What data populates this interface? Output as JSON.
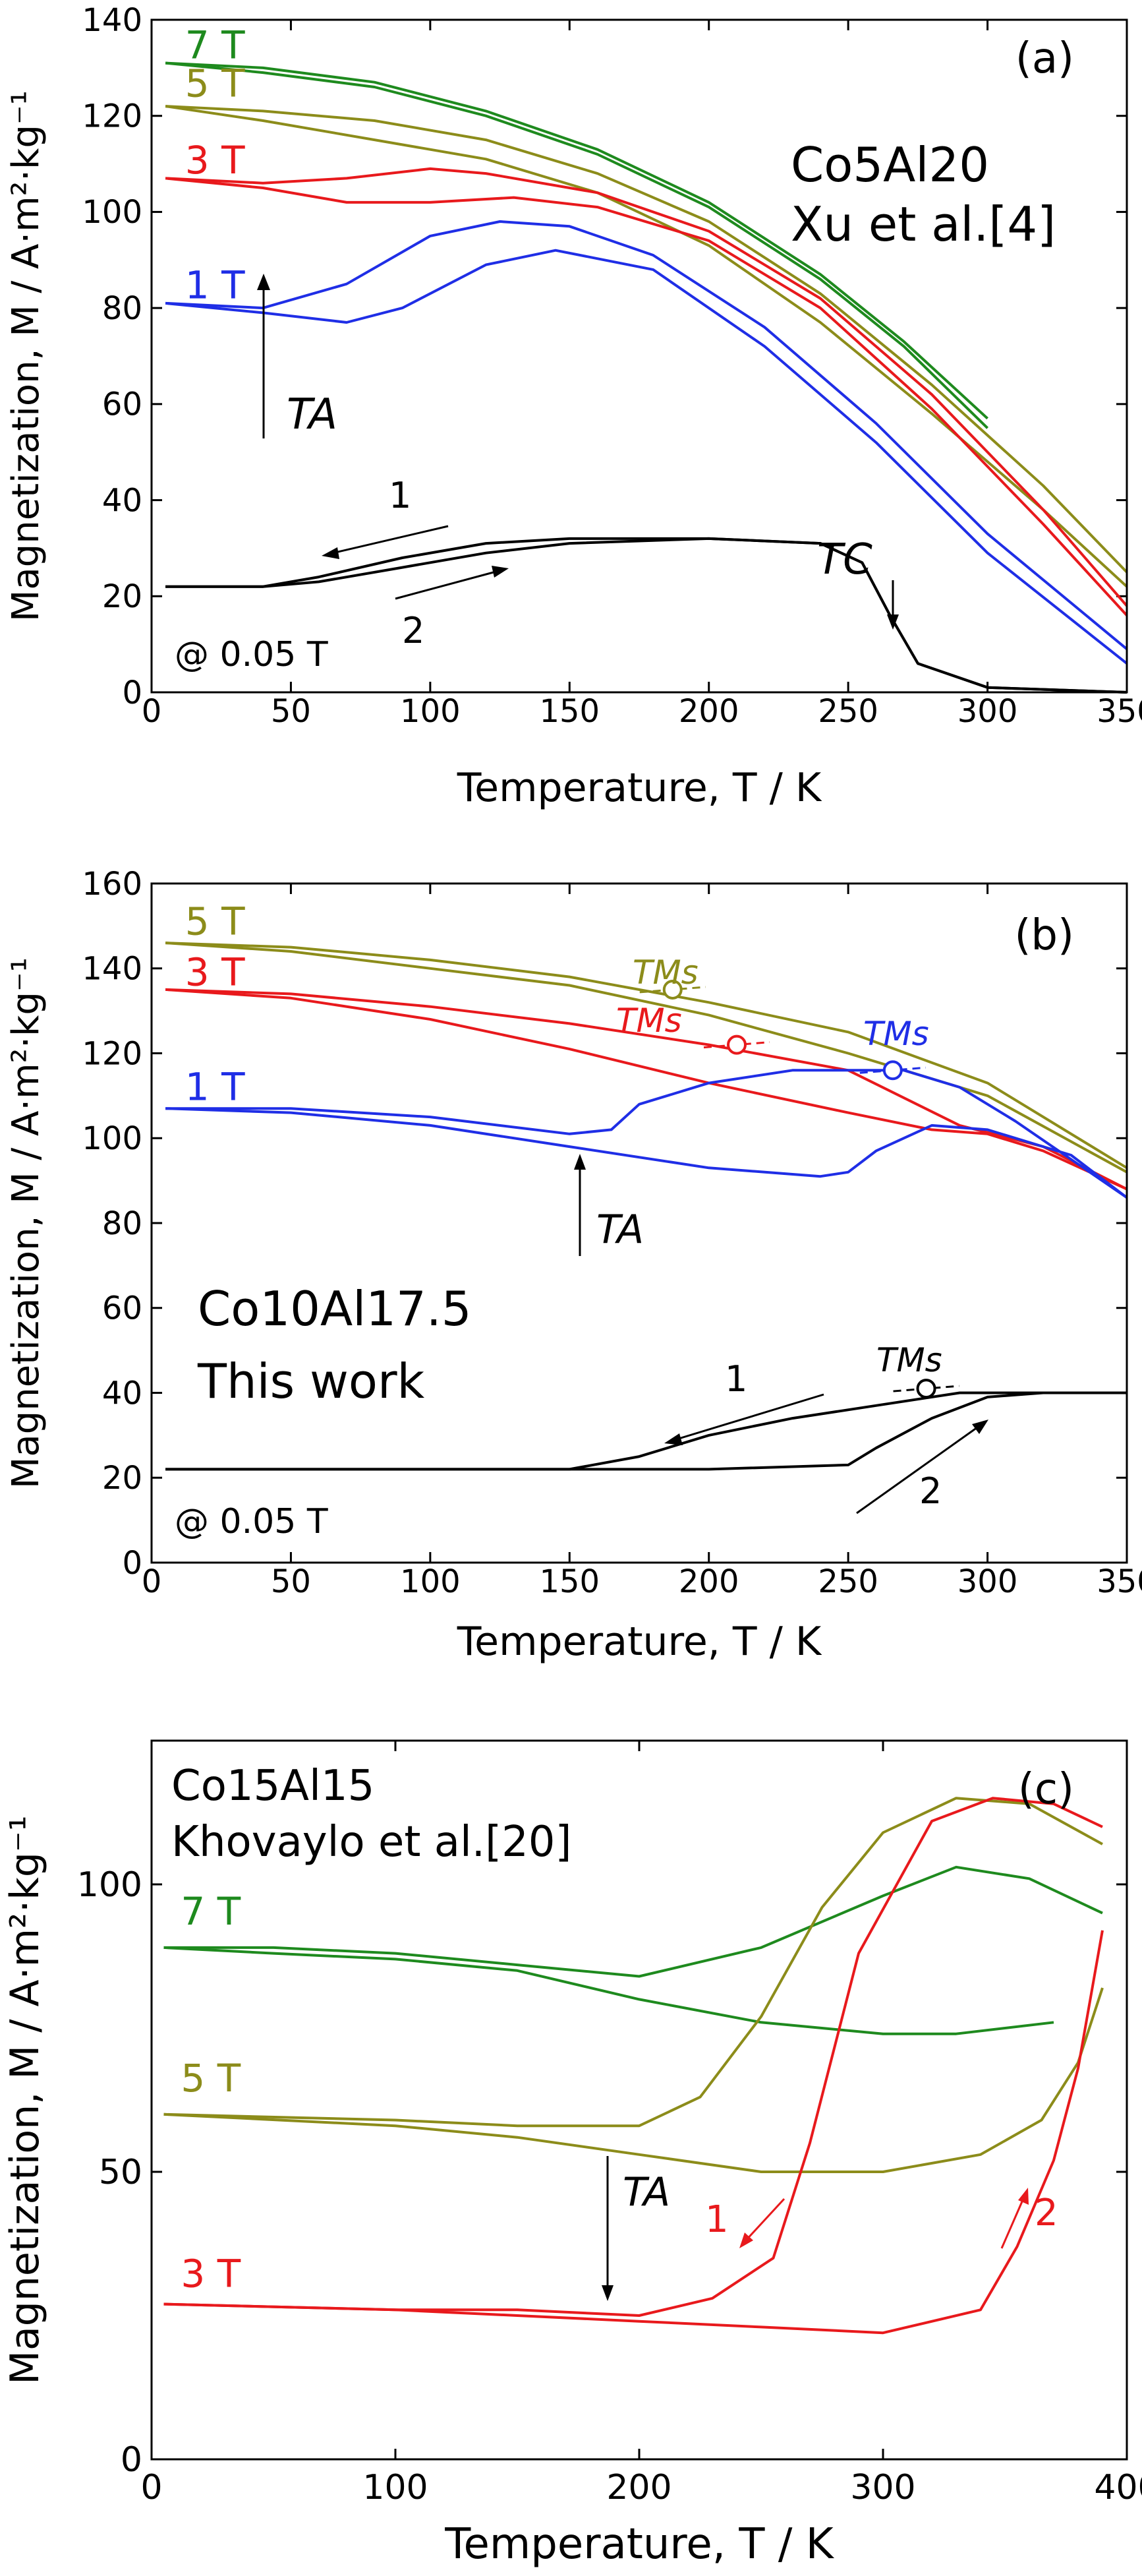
{
  "chart_data": [
    {
      "type": "line",
      "panel_label": "(a)",
      "xlabel": "Temperature, T / K",
      "ylabel": "Magnetization, M / A·m²·kg⁻¹",
      "xlim": [
        0,
        350
      ],
      "ylim": [
        0,
        140
      ],
      "xticks": [
        0,
        50,
        100,
        150,
        200,
        250,
        300,
        350
      ],
      "yticks": [
        0,
        20,
        40,
        60,
        80,
        100,
        120,
        140
      ],
      "annotations": {
        "sample_text": "Co5Al20",
        "ref_text": "Xu et al.[4]",
        "field_note": "@ 0.05 T",
        "ta": "TA",
        "tc": "TC",
        "arrow1": "1",
        "arrow2": "2"
      },
      "series": [
        {
          "name": "7 T",
          "color": "#1e8a1e",
          "label_xy": [
            12,
            132
          ],
          "x": [
            5,
            40,
            80,
            120,
            160,
            200,
            240,
            270,
            300
          ],
          "values": [
            131,
            130,
            127,
            121,
            113,
            102,
            87,
            73,
            57
          ]
        },
        {
          "name": "7 T (2)",
          "color": "#1e8a1e",
          "x": [
            5,
            40,
            80,
            120,
            160,
            200,
            240,
            270,
            300
          ],
          "values": [
            131,
            129,
            126,
            120,
            112,
            101,
            86,
            72,
            55
          ]
        },
        {
          "name": "5 T",
          "color": "#8c8c1a",
          "label_xy": [
            12,
            124
          ],
          "x": [
            5,
            40,
            80,
            120,
            160,
            200,
            240,
            280,
            320,
            350
          ],
          "values": [
            122,
            121,
            119,
            115,
            108,
            98,
            83,
            64,
            43,
            25
          ]
        },
        {
          "name": "5 T (2)",
          "color": "#8c8c1a",
          "x": [
            5,
            40,
            80,
            120,
            160,
            200,
            240,
            280,
            320,
            350
          ],
          "values": [
            122,
            119,
            115,
            111,
            104,
            93,
            77,
            58,
            38,
            22
          ]
        },
        {
          "name": "3 T",
          "color": "#e8191c",
          "label_xy": [
            12,
            108
          ],
          "x": [
            5,
            40,
            70,
            100,
            120,
            160,
            200,
            240,
            280,
            320,
            350
          ],
          "values": [
            107,
            106,
            107,
            109,
            108,
            104,
            96,
            82,
            62,
            38,
            18
          ]
        },
        {
          "name": "3 T (2)",
          "color": "#e8191c",
          "x": [
            5,
            40,
            70,
            100,
            130,
            160,
            200,
            240,
            280,
            320,
            350
          ],
          "values": [
            107,
            105,
            102,
            102,
            103,
            101,
            94,
            80,
            59,
            35,
            16
          ]
        },
        {
          "name": "1 T",
          "color": "#1f2ee6",
          "label_xy": [
            12,
            82
          ],
          "x": [
            5,
            40,
            70,
            100,
            125,
            150,
            180,
            220,
            260,
            300,
            350
          ],
          "values": [
            81,
            80,
            85,
            95,
            98,
            97,
            91,
            76,
            56,
            33,
            9
          ]
        },
        {
          "name": "1 T (2)",
          "color": "#1f2ee6",
          "x": [
            5,
            40,
            70,
            90,
            120,
            145,
            180,
            220,
            260,
            300,
            350
          ],
          "values": [
            81,
            79,
            77,
            80,
            89,
            92,
            88,
            72,
            52,
            29,
            6
          ]
        },
        {
          "name": "0.05 T",
          "color": "#000000",
          "x": [
            5,
            40,
            60,
            90,
            120,
            150,
            200,
            240,
            255,
            265,
            275,
            300,
            350
          ],
          "values": [
            22,
            22,
            24,
            28,
            31,
            32,
            32,
            31,
            27,
            16,
            6,
            1,
            0
          ]
        },
        {
          "name": "0.05 T (2)",
          "color": "#000000",
          "x": [
            5,
            40,
            60,
            90,
            120,
            150,
            200,
            240,
            255,
            265,
            275,
            300,
            350
          ],
          "values": [
            22,
            22,
            23,
            26,
            29,
            31,
            32,
            31,
            27,
            16,
            6,
            1,
            0
          ]
        }
      ]
    },
    {
      "type": "line",
      "panel_label": "(b)",
      "xlabel": "Temperature, T / K",
      "ylabel": "Magnetization, M / A·m²·kg⁻¹",
      "xlim": [
        0,
        350
      ],
      "ylim": [
        0,
        160
      ],
      "xticks": [
        0,
        50,
        100,
        150,
        200,
        250,
        300,
        350
      ],
      "yticks": [
        0,
        20,
        40,
        60,
        80,
        100,
        120,
        140,
        160
      ],
      "annotations": {
        "sample_text": "Co10Al17.5",
        "work_text": "This work",
        "field_note": "@ 0.05 T",
        "ta": "TA",
        "tms": "TMs",
        "arrow1": "1",
        "arrow2": "2"
      },
      "markers": [
        {
          "x": 187,
          "y": 135,
          "color": "#8c8c1a"
        },
        {
          "x": 210,
          "y": 122,
          "color": "#e8191c"
        },
        {
          "x": 266,
          "y": 116,
          "color": "#1f2ee6"
        },
        {
          "x": 278,
          "y": 41,
          "color": "#000000"
        }
      ],
      "series": [
        {
          "name": "5 T",
          "color": "#8c8c1a",
          "label_xy": [
            12,
            148
          ],
          "x": [
            5,
            50,
            100,
            150,
            200,
            250,
            300,
            350
          ],
          "values": [
            146,
            145,
            142,
            138,
            132,
            125,
            113,
            93
          ]
        },
        {
          "name": "5 T (2)",
          "color": "#8c8c1a",
          "x": [
            5,
            50,
            100,
            150,
            200,
            250,
            300,
            350
          ],
          "values": [
            146,
            144,
            140,
            136,
            129,
            120,
            110,
            92
          ]
        },
        {
          "name": "3 T",
          "color": "#e8191c",
          "label_xy": [
            12,
            136
          ],
          "x": [
            5,
            50,
            100,
            150,
            200,
            250,
            290,
            320,
            350
          ],
          "values": [
            135,
            134,
            131,
            127,
            122,
            116,
            103,
            98,
            88
          ]
        },
        {
          "name": "3 T (2)",
          "color": "#e8191c",
          "x": [
            5,
            50,
            100,
            150,
            200,
            250,
            280,
            300,
            320,
            350
          ],
          "values": [
            135,
            133,
            128,
            121,
            113,
            106,
            102,
            101,
            97,
            88
          ]
        },
        {
          "name": "1 T",
          "color": "#1f2ee6",
          "label_xy": [
            12,
            109
          ],
          "x": [
            5,
            50,
            100,
            150,
            165,
            175,
            200,
            230,
            250,
            270,
            290,
            310,
            350
          ],
          "values": [
            107,
            107,
            105,
            101,
            102,
            108,
            113,
            116,
            116,
            116,
            112,
            104,
            86
          ]
        },
        {
          "name": "1 T (2)",
          "color": "#1f2ee6",
          "x": [
            5,
            50,
            100,
            150,
            200,
            240,
            250,
            260,
            280,
            300,
            330,
            350
          ],
          "values": [
            107,
            106,
            103,
            98,
            93,
            91,
            92,
            97,
            103,
            102,
            96,
            86
          ]
        },
        {
          "name": "0.05 T",
          "color": "#000000",
          "x": [
            5,
            100,
            150,
            175,
            200,
            230,
            260,
            290,
            320,
            350
          ],
          "values": [
            22,
            22,
            22,
            25,
            30,
            34,
            37,
            40,
            40,
            40
          ]
        },
        {
          "name": "0.05 T (2)",
          "color": "#000000",
          "x": [
            5,
            100,
            150,
            200,
            250,
            260,
            280,
            300,
            320,
            350
          ],
          "values": [
            22,
            22,
            22,
            22,
            23,
            27,
            34,
            39,
            40,
            40
          ]
        }
      ]
    },
    {
      "type": "line",
      "panel_label": "(c)",
      "xlabel": "Temperature, T / K",
      "ylabel": "Magnetization, M / A·m²·kg⁻¹",
      "xlim": [
        0,
        400
      ],
      "ylim": [
        0,
        125
      ],
      "xticks": [
        0,
        100,
        200,
        300,
        400
      ],
      "yticks": [
        0,
        50,
        100
      ],
      "annotations": {
        "sample_text": "Co15Al15",
        "ref_text": "Khovaylo et al.[20]",
        "ta": "TA",
        "arrow1": "1",
        "arrow2": "2"
      },
      "series": [
        {
          "name": "7 T",
          "color": "#1e8a1e",
          "label_xy": [
            12,
            93
          ],
          "x": [
            5,
            50,
            100,
            150,
            200,
            250,
            300,
            330,
            360,
            390
          ],
          "values": [
            89,
            89,
            88,
            86,
            84,
            89,
            98,
            103,
            101,
            95
          ]
        },
        {
          "name": "7 T (2)",
          "color": "#1e8a1e",
          "x": [
            5,
            50,
            100,
            150,
            200,
            250,
            300,
            330,
            370
          ],
          "values": [
            89,
            88,
            87,
            85,
            80,
            76,
            74,
            74,
            76
          ]
        },
        {
          "name": "5 T",
          "color": "#8c8c1a",
          "label_xy": [
            12,
            64
          ],
          "x": [
            5,
            100,
            150,
            200,
            225,
            250,
            275,
            300,
            330,
            360,
            390
          ],
          "values": [
            60,
            59,
            58,
            58,
            63,
            77,
            96,
            109,
            115,
            114,
            107
          ]
        },
        {
          "name": "5 T (2)",
          "color": "#8c8c1a",
          "x": [
            5,
            100,
            150,
            200,
            250,
            300,
            340,
            365,
            380,
            390
          ],
          "values": [
            60,
            58,
            56,
            53,
            50,
            50,
            53,
            59,
            69,
            82
          ]
        },
        {
          "name": "3 T",
          "color": "#e8191c",
          "label_xy": [
            12,
            30
          ],
          "x": [
            5,
            100,
            150,
            200,
            230,
            255,
            270,
            290,
            320,
            345,
            370,
            390
          ],
          "values": [
            27,
            26,
            26,
            25,
            28,
            35,
            55,
            88,
            111,
            115,
            114,
            110
          ]
        },
        {
          "name": "3 T (2)",
          "color": "#e8191c",
          "x": [
            5,
            100,
            150,
            200,
            250,
            300,
            340,
            355,
            370,
            380,
            390
          ],
          "values": [
            27,
            26,
            25,
            24,
            23,
            22,
            26,
            37,
            52,
            68,
            92
          ]
        }
      ]
    }
  ]
}
